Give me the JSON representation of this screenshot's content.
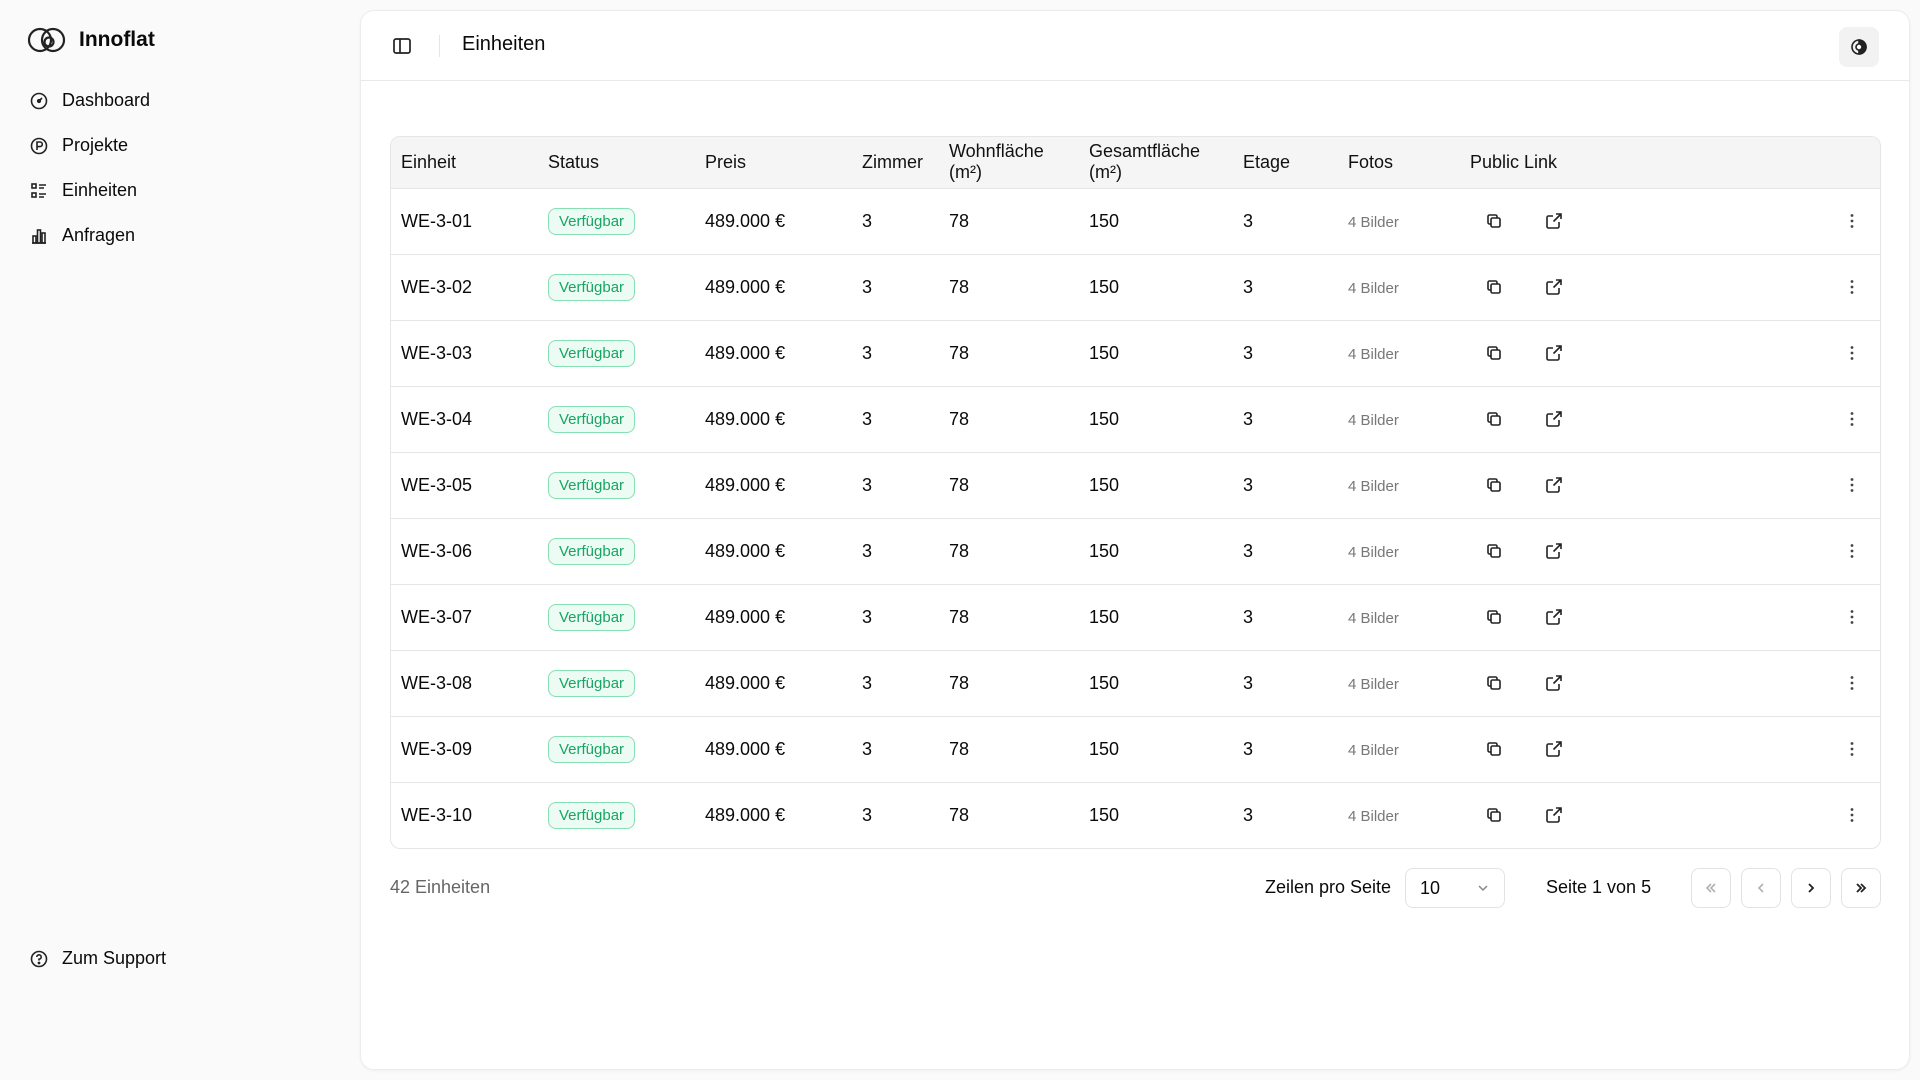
{
  "sidebar": {
    "brand": "Innoflat",
    "items": [
      {
        "label": "Dashboard",
        "icon": "gauge-icon"
      },
      {
        "label": "Projekte",
        "icon": "project-icon"
      },
      {
        "label": "Einheiten",
        "icon": "list-icon"
      },
      {
        "label": "Anfragen",
        "icon": "chart-icon"
      }
    ],
    "support": "Zum Support"
  },
  "header": {
    "title": "Einheiten"
  },
  "table": {
    "columns": [
      "Einheit",
      "Status",
      "Preis",
      "Zimmer",
      "Wohnfläche (m²)",
      "Gesamtfläche (m²)",
      "Etage",
      "Fotos",
      "Public Link"
    ],
    "rows": [
      {
        "einheit": "WE-3-01",
        "status": "Verfügbar",
        "preis": "489.000 €",
        "zimmer": "3",
        "wohnflaeche": "78",
        "gesamtflaeche": "150",
        "etage": "3",
        "fotos": "4 Bilder"
      },
      {
        "einheit": "WE-3-02",
        "status": "Verfügbar",
        "preis": "489.000 €",
        "zimmer": "3",
        "wohnflaeche": "78",
        "gesamtflaeche": "150",
        "etage": "3",
        "fotos": "4 Bilder"
      },
      {
        "einheit": "WE-3-03",
        "status": "Verfügbar",
        "preis": "489.000 €",
        "zimmer": "3",
        "wohnflaeche": "78",
        "gesamtflaeche": "150",
        "etage": "3",
        "fotos": "4 Bilder"
      },
      {
        "einheit": "WE-3-04",
        "status": "Verfügbar",
        "preis": "489.000 €",
        "zimmer": "3",
        "wohnflaeche": "78",
        "gesamtflaeche": "150",
        "etage": "3",
        "fotos": "4 Bilder"
      },
      {
        "einheit": "WE-3-05",
        "status": "Verfügbar",
        "preis": "489.000 €",
        "zimmer": "3",
        "wohnflaeche": "78",
        "gesamtflaeche": "150",
        "etage": "3",
        "fotos": "4 Bilder"
      },
      {
        "einheit": "WE-3-06",
        "status": "Verfügbar",
        "preis": "489.000 €",
        "zimmer": "3",
        "wohnflaeche": "78",
        "gesamtflaeche": "150",
        "etage": "3",
        "fotos": "4 Bilder"
      },
      {
        "einheit": "WE-3-07",
        "status": "Verfügbar",
        "preis": "489.000 €",
        "zimmer": "3",
        "wohnflaeche": "78",
        "gesamtflaeche": "150",
        "etage": "3",
        "fotos": "4 Bilder"
      },
      {
        "einheit": "WE-3-08",
        "status": "Verfügbar",
        "preis": "489.000 €",
        "zimmer": "3",
        "wohnflaeche": "78",
        "gesamtflaeche": "150",
        "etage": "3",
        "fotos": "4 Bilder"
      },
      {
        "einheit": "WE-3-09",
        "status": "Verfügbar",
        "preis": "489.000 €",
        "zimmer": "3",
        "wohnflaeche": "78",
        "gesamtflaeche": "150",
        "etage": "3",
        "fotos": "4 Bilder"
      },
      {
        "einheit": "WE-3-10",
        "status": "Verfügbar",
        "preis": "489.000 €",
        "zimmer": "3",
        "wohnflaeche": "78",
        "gesamtflaeche": "150",
        "etage": "3",
        "fotos": "4 Bilder"
      }
    ]
  },
  "footer": {
    "count": "42 Einheiten",
    "rows_label": "Zeilen pro Seite",
    "rows_value": "10",
    "page_info": "Seite 1 von 5"
  },
  "colors": {
    "status_green": "#18a563",
    "status_bg": "#ecfbf3"
  }
}
